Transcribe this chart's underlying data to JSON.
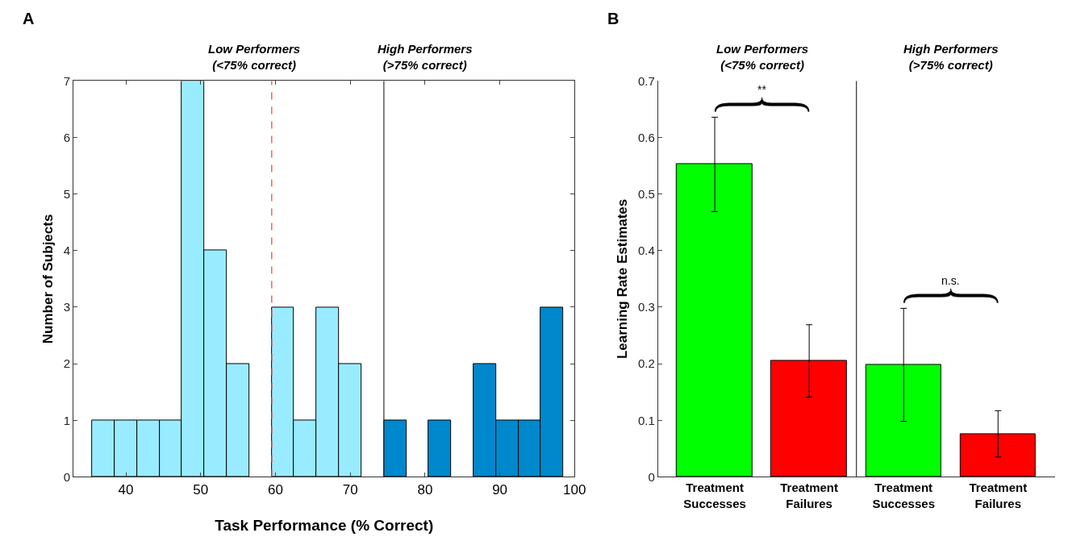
{
  "chart_data": [
    {
      "type": "histogram",
      "title": "A",
      "xlabel": "Task Performance (% Correct)",
      "ylabel": "Number of Subjects",
      "bins": [
        35.5,
        38.5,
        41.5,
        44.5,
        47.5,
        50.5,
        53.5,
        56.5,
        59.5,
        62.5,
        65.5,
        68.5,
        71.5,
        74.5,
        77.5,
        80.5,
        83.5,
        86.5,
        89.5,
        92.5,
        95.5,
        98.5
      ],
      "values": [
        1,
        1,
        1,
        1,
        7,
        4,
        2,
        0,
        3,
        1,
        3,
        2,
        0,
        1,
        0,
        1,
        0,
        2,
        1,
        1,
        3
      ],
      "colors": [
        "#99ecff",
        "#99ecff",
        "#99ecff",
        "#99ecff",
        "#99ecff",
        "#99ecff",
        "#99ecff",
        "#99ecff",
        "#99ecff",
        "#99ecff",
        "#99ecff",
        "#99ecff",
        "#99ecff",
        "#0088cc",
        "#0088cc",
        "#0088cc",
        "#0088cc",
        "#0088cc",
        "#0088cc",
        "#0088cc",
        "#0088cc"
      ],
      "xlim": [
        33,
        100
      ],
      "xticks": [
        40,
        50,
        60,
        70,
        80,
        90,
        100
      ],
      "ylim": [
        0,
        7
      ],
      "yticks": [
        0,
        1,
        2,
        3,
        4,
        5,
        6,
        7
      ],
      "ref_lines": [
        {
          "axis": "x",
          "value": 59.5,
          "color": "#ff3333",
          "line_style": "dashed"
        },
        {
          "axis": "x",
          "value": 74.5,
          "color": "#333333",
          "line_style": "solid"
        }
      ],
      "annotations": [
        "Low Performers\n(<75% correct)",
        "High Performers\n(>75% correct)"
      ]
    },
    {
      "type": "bar",
      "title": "B",
      "ylabel": "Learning Rate Estimates",
      "categories": [
        "Treatment\nSuccesses",
        "Treatment\nFailures",
        "Treatment\nSuccesses",
        "Treatment\nFailures"
      ],
      "values": [
        0.553,
        0.205,
        0.198,
        0.076
      ],
      "colors": [
        "#00ff00",
        "#ff0000",
        "#00ff00",
        "#ff0000"
      ],
      "errors": [
        [
          0.469,
          0.636
        ],
        [
          0.141,
          0.269
        ],
        [
          0.098,
          0.298
        ],
        [
          0.035,
          0.117
        ]
      ],
      "ylim": [
        0,
        0.7
      ],
      "yticks": [
        0,
        0.1,
        0.2,
        0.3,
        0.4,
        0.5,
        0.6,
        0.7
      ],
      "annotations": [
        "Low Performers\n(<75% correct)",
        "High Performers\n(>75% correct)",
        "**",
        "n.s."
      ]
    }
  ]
}
